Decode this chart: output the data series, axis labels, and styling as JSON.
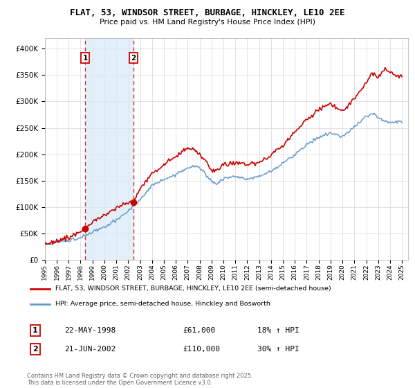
{
  "title": "FLAT, 53, WINDSOR STREET, BURBAGE, HINCKLEY, LE10 2EE",
  "subtitle": "Price paid vs. HM Land Registry's House Price Index (HPI)",
  "legend_line1": "FLAT, 53, WINDSOR STREET, BURBAGE, HINCKLEY, LE10 2EE (semi-detached house)",
  "legend_line2": "HPI: Average price, semi-detached house, Hinckley and Bosworth",
  "transaction1_label": "1",
  "transaction1_date": "22-MAY-1998",
  "transaction1_price": "£61,000",
  "transaction1_hpi": "18% ↑ HPI",
  "transaction1_year": 1998.38,
  "transaction2_label": "2",
  "transaction2_date": "21-JUN-2002",
  "transaction2_price": "£110,000",
  "transaction2_hpi": "30% ↑ HPI",
  "transaction2_year": 2002.46,
  "price_color": "#cc0000",
  "hpi_color": "#6699cc",
  "hpi_fill_color": "#cce0f0",
  "vline_color": "#cc0000",
  "vfill_color": "#d8eaf8",
  "dot_color": "#cc0000",
  "footer": "Contains HM Land Registry data © Crown copyright and database right 2025.\nThis data is licensed under the Open Government Licence v3.0.",
  "ylim": [
    0,
    420000
  ],
  "yticks": [
    0,
    50000,
    100000,
    150000,
    200000,
    250000,
    300000,
    350000,
    400000
  ],
  "bg_color": "#ffffff",
  "grid_color": "#dddddd"
}
